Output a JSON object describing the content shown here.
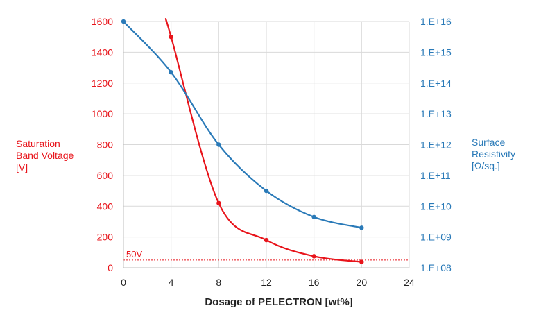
{
  "chart_data": {
    "type": "line",
    "xlabel": "Dosage of PELECTRON [wt%]",
    "x_ticks": [
      0,
      4,
      8,
      12,
      16,
      20,
      24
    ],
    "xlim": [
      0,
      24
    ],
    "y_left": {
      "label_lines": [
        "Saturation",
        "Band Voltage",
        "[V]"
      ],
      "ticks": [
        0,
        200,
        400,
        600,
        800,
        1000,
        1200,
        1400,
        1600
      ],
      "ylim": [
        0,
        1600
      ],
      "color": "#e8141b"
    },
    "y_right": {
      "label_lines": [
        "Surface",
        "Resistivity",
        "[Ω/sq.]"
      ],
      "tick_labels": [
        "1.E+08",
        "1.E+09",
        "1.E+10",
        "1.E+11",
        "1.E+12",
        "1.E+13",
        "1.E+14",
        "1.E+15",
        "1.E+16"
      ],
      "tick_exponents": [
        8,
        9,
        10,
        11,
        12,
        13,
        14,
        15,
        16
      ],
      "scale": "log",
      "color": "#2a7ab8"
    },
    "grid": true,
    "series": [
      {
        "axis": "left",
        "color": "#e8141b",
        "x": [
          4,
          8,
          12,
          16,
          20
        ],
        "y": [
          1500,
          420,
          180,
          75,
          38
        ],
        "line_start": [
          3.6,
          1600
        ]
      },
      {
        "axis": "right",
        "color": "#2a7ab8",
        "x": [
          0,
          4,
          8,
          12,
          16,
          20
        ],
        "y_log10": [
          16,
          14.35,
          12.0,
          10.5,
          9.65,
          9.3
        ]
      }
    ],
    "reference_line": {
      "value": 50,
      "label": "50V",
      "color": "#e8141b"
    }
  }
}
